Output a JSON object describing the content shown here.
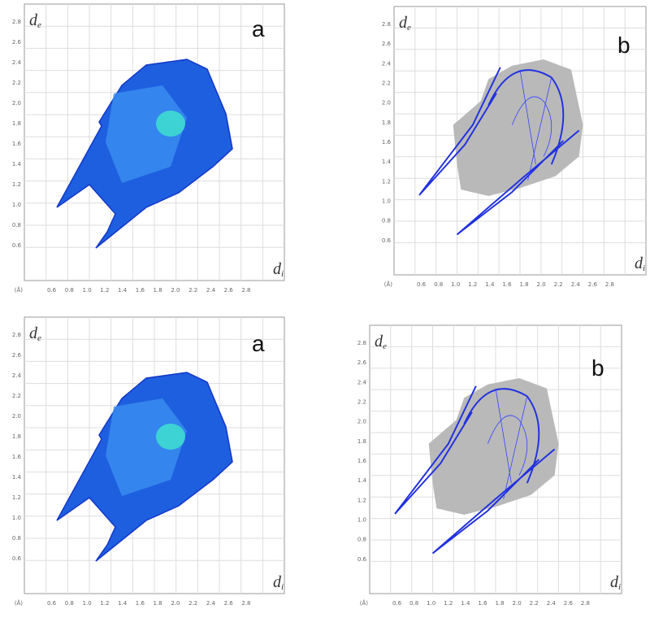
{
  "panels": [
    {
      "label": "a",
      "y_axis": {
        "symbol": "d",
        "sub": "e"
      },
      "x_axis": {
        "symbol": "d",
        "sub": "i"
      },
      "unit": "(Å)",
      "yticks": [
        "2.8",
        "2.6",
        "2.4",
        "2.2",
        "2.0",
        "1.8",
        "1.6",
        "1.4",
        "1.2",
        "1.0",
        "0.8",
        "0.6"
      ],
      "xticks": [
        "0.6",
        "0.8",
        "1.0",
        "1.2",
        "1.4",
        "1.6",
        "1.8",
        "2.0",
        "2.2",
        "2.4",
        "2.6",
        "2.8"
      ]
    },
    {
      "label": "b",
      "y_axis": {
        "symbol": "d",
        "sub": "e"
      },
      "x_axis": {
        "symbol": "d",
        "sub": "i"
      },
      "unit": "(Å)",
      "yticks": [
        "2.8",
        "2.6",
        "2.4",
        "2.2",
        "2.0",
        "1.8",
        "1.6",
        "1.4",
        "1.2",
        "1.0",
        "0.8",
        "0.6"
      ],
      "xticks": [
        "0.6",
        "0.8",
        "1.0",
        "1.2",
        "1.4",
        "1.6",
        "1.8",
        "2.0",
        "2.2",
        "2.4",
        "2.6",
        "2.8"
      ]
    },
    {
      "label": "a",
      "y_axis": {
        "symbol": "d",
        "sub": "e"
      },
      "x_axis": {
        "symbol": "d",
        "sub": "i"
      },
      "unit": "(Å)",
      "yticks": [
        "2.8",
        "2.6",
        "2.4",
        "2.2",
        "2.0",
        "1.8",
        "1.6",
        "1.4",
        "1.2",
        "1.0",
        "0.8",
        "0.6"
      ],
      "xticks": [
        "0.6",
        "0.8",
        "1.0",
        "1.2",
        "1.4",
        "1.6",
        "1.8",
        "2.0",
        "2.2",
        "2.4",
        "2.6",
        "2.8"
      ]
    },
    {
      "label": "b",
      "y_axis": {
        "symbol": "d",
        "sub": "e"
      },
      "x_axis": {
        "symbol": "d",
        "sub": "i"
      },
      "unit": "(Å)",
      "yticks": [
        "2.8",
        "2.6",
        "2.4",
        "2.2",
        "2.0",
        "1.8",
        "1.6",
        "1.4",
        "1.2",
        "1.0",
        "0.8",
        "0.6"
      ],
      "xticks": [
        "0.6",
        "0.8",
        "1.0",
        "1.2",
        "1.4",
        "1.6",
        "1.8",
        "2.0",
        "2.2",
        "2.4",
        "2.6",
        "2.8"
      ]
    }
  ]
}
